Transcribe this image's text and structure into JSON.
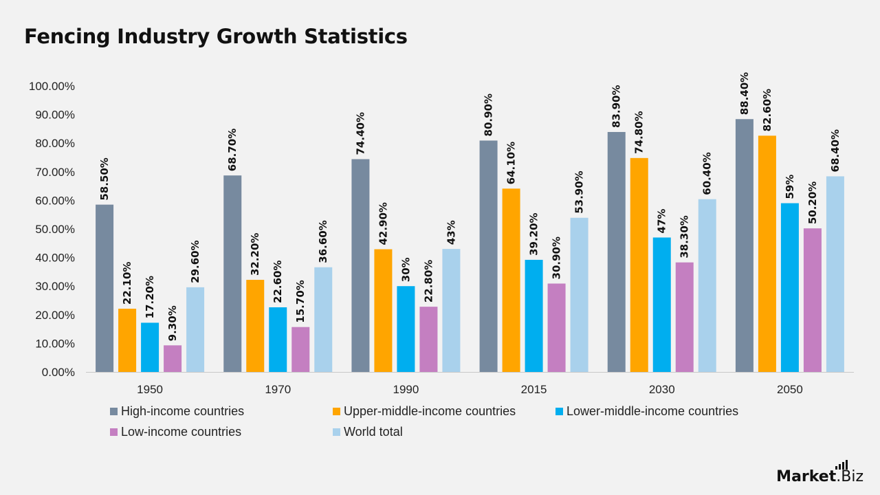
{
  "title": "Fencing Industry Growth Statistics",
  "brand": {
    "name_bold": "Market",
    "name_rest": ".Biz",
    "icon": "bar-chart-icon"
  },
  "chart_data": {
    "type": "bar",
    "title": "Fencing Industry Growth Statistics",
    "xlabel": "",
    "ylabel": "",
    "ylim": [
      0,
      100
    ],
    "yticks": [
      "0.00%",
      "10.00%",
      "20.00%",
      "30.00%",
      "40.00%",
      "50.00%",
      "60.00%",
      "70.00%",
      "80.00%",
      "90.00%",
      "100.00%"
    ],
    "grid": false,
    "legend_position": "bottom",
    "categories": [
      "1950",
      "1970",
      "1990",
      "2015",
      "2030",
      "2050"
    ],
    "series": [
      {
        "name": "High-income countries",
        "color": "#778a9f",
        "values": [
          58.5,
          68.7,
          74.4,
          80.9,
          83.9,
          88.4
        ],
        "labels": [
          "58.50%",
          "68.70%",
          "74.40%",
          "80.90%",
          "83.90%",
          "88.40%"
        ]
      },
      {
        "name": "Upper-middle-income countries",
        "color": "#ffa500",
        "values": [
          22.1,
          32.2,
          42.9,
          64.1,
          74.8,
          82.6
        ],
        "labels": [
          "22.10%",
          "32.20%",
          "42.90%",
          "64.10%",
          "74.80%",
          "82.60%"
        ]
      },
      {
        "name": "Lower-middle-income countries",
        "color": "#00aeef",
        "values": [
          17.2,
          22.6,
          30,
          39.2,
          47,
          59
        ],
        "labels": [
          "17.20%",
          "22.60%",
          "30%",
          "39.20%",
          "47%",
          "59%"
        ]
      },
      {
        "name": "Low-income countries",
        "color": "#c47fc1",
        "values": [
          9.3,
          15.7,
          22.8,
          30.9,
          38.3,
          50.2
        ],
        "labels": [
          "9.30%",
          "15.70%",
          "22.80%",
          "30.90%",
          "38.30%",
          "50.20%"
        ]
      },
      {
        "name": "World total",
        "color": "#a9d1ec",
        "values": [
          29.6,
          36.6,
          43,
          53.9,
          60.4,
          68.4
        ],
        "labels": [
          "29.60%",
          "36.60%",
          "43%",
          "53.90%",
          "60.40%",
          "68.40%"
        ]
      }
    ]
  }
}
